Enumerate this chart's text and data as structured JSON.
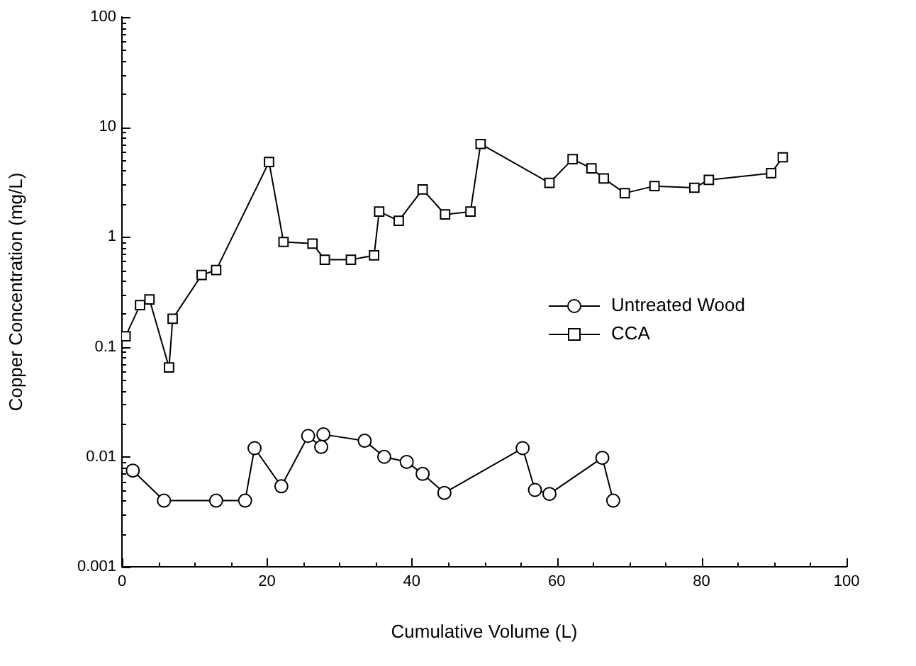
{
  "chart_data": {
    "type": "line",
    "xlabel": "Cumulative Volume (L)",
    "ylabel": "Copper Concentration (mg/L)",
    "log": "y",
    "xlim": [
      0,
      100
    ],
    "ylim": [
      0.001,
      100
    ],
    "xticks": [
      0,
      {
        "value": 5,
        "label": null
      },
      20,
      {
        "value": 10,
        "label": null
      },
      {
        "value": 15,
        "label": null
      },
      {
        "value": 25,
        "label": null
      },
      {
        "value": 30,
        "label": null
      },
      {
        "value": 35,
        "label": null
      },
      40,
      {
        "value": 45,
        "label": null
      },
      {
        "value": 50,
        "label": null
      },
      {
        "value": 55,
        "label": null
      },
      60,
      {
        "value": 65,
        "label": null
      },
      {
        "value": 70,
        "label": null
      },
      {
        "value": 75,
        "label": null
      },
      80,
      {
        "value": 85,
        "label": null
      },
      {
        "value": 90,
        "label": null
      },
      {
        "value": 95,
        "label": null
      },
      100
    ],
    "yticks": [
      0.001,
      {
        "value": 0.002,
        "label": null
      },
      {
        "value": 0.003,
        "label": null
      },
      {
        "value": 0.004,
        "label": null
      },
      {
        "value": 0.005,
        "label": null
      },
      {
        "value": 0.006,
        "label": null
      },
      {
        "value": 0.007,
        "label": null
      },
      {
        "value": 0.008,
        "label": null
      },
      {
        "value": 0.009,
        "label": null
      },
      0.01,
      {
        "value": 0.02,
        "label": null
      },
      {
        "value": 0.03,
        "label": null
      },
      {
        "value": 0.04,
        "label": null
      },
      {
        "value": 0.05,
        "label": null
      },
      {
        "value": 0.06,
        "label": null
      },
      {
        "value": 0.07,
        "label": null
      },
      {
        "value": 0.08,
        "label": null
      },
      {
        "value": 0.09,
        "label": null
      },
      0.1,
      {
        "value": 0.2,
        "label": null
      },
      {
        "value": 0.3,
        "label": null
      },
      {
        "value": 0.4,
        "label": null
      },
      {
        "value": 0.5,
        "label": null
      },
      {
        "value": 0.6,
        "label": null
      },
      {
        "value": 0.7,
        "label": null
      },
      {
        "value": 0.8,
        "label": null
      },
      {
        "value": 0.9,
        "label": null
      },
      1,
      {
        "value": 2,
        "label": null
      },
      {
        "value": 3,
        "label": null
      },
      {
        "value": 4,
        "label": null
      },
      {
        "value": 5,
        "label": null
      },
      {
        "value": 6,
        "label": null
      },
      {
        "value": 7,
        "label": null
      },
      {
        "value": 8,
        "label": null
      },
      {
        "value": 9,
        "label": null
      },
      10,
      {
        "value": 20,
        "label": null
      },
      {
        "value": 30,
        "label": null
      },
      {
        "value": 40,
        "label": null
      },
      {
        "value": 50,
        "label": null
      },
      {
        "value": 60,
        "label": null
      },
      {
        "value": 70,
        "label": null
      },
      {
        "value": 80,
        "label": null
      },
      {
        "value": 90,
        "label": null
      },
      100
    ],
    "grid": false,
    "legend": "right",
    "line_style": "solid",
    "series": [
      {
        "name": "Untreated Wood",
        "color": "#000000",
        "marker": "circle",
        "x": [
          1.5,
          5.8,
          13,
          17,
          18.3,
          22,
          25.7,
          27.5,
          27.8,
          33.5,
          36.2,
          39.3,
          41.5,
          44.5,
          55.3,
          57,
          59,
          66.3,
          67.8
        ],
        "values": [
          0.0075,
          0.004,
          0.004,
          0.004,
          0.012,
          0.0054,
          0.0155,
          0.0123,
          0.016,
          0.014,
          0.01,
          0.009,
          0.007,
          0.0047,
          0.012,
          0.005,
          0.0046,
          0.0098,
          0.004
        ]
      },
      {
        "name": "CCA",
        "color": "#000000",
        "marker": "square",
        "x": [
          0.5,
          2.5,
          3.8,
          6.5,
          7,
          11,
          13,
          20.3,
          22.3,
          26.3,
          28,
          31.6,
          34.8,
          35.5,
          38.2,
          41.5,
          44.6,
          48.1,
          49.5,
          59,
          62.2,
          64.8,
          66.5,
          69.4,
          73.5,
          79,
          81,
          89.6,
          91.2
        ],
        "values": [
          0.125,
          0.24,
          0.27,
          0.065,
          0.18,
          0.45,
          0.5,
          4.8,
          0.9,
          0.87,
          0.62,
          0.62,
          0.68,
          1.7,
          1.4,
          2.7,
          1.6,
          1.7,
          7,
          3.1,
          5.1,
          4.2,
          3.4,
          2.5,
          2.9,
          2.8,
          3.3,
          3.8,
          5.3
        ]
      }
    ]
  }
}
